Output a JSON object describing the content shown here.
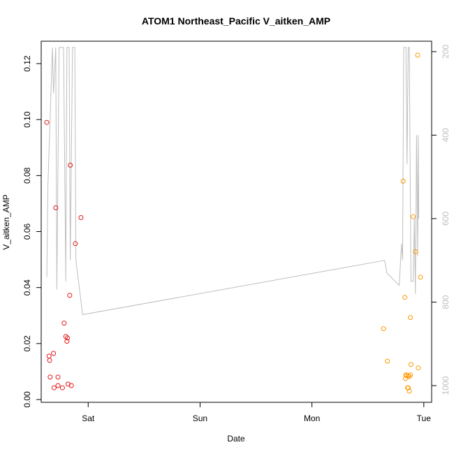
{
  "chart_data": {
    "type": "scatter",
    "title": "ATOM1 Northeast_Pacific V_aitken_AMP",
    "xlabel": "Date",
    "ylabel": "V_aitken_AMP",
    "xlim": [
      -0.42,
      3.07
    ],
    "ylim": [
      -0.001,
      0.128
    ],
    "x_ticks": [
      {
        "value": 0,
        "label": "Sat"
      },
      {
        "value": 1,
        "label": "Sun"
      },
      {
        "value": 2,
        "label": "Mon"
      },
      {
        "value": 3,
        "label": "Tue"
      }
    ],
    "y_ticks": [
      0.0,
      0.02,
      0.04,
      0.06,
      0.08,
      0.1,
      0.12
    ],
    "y_tick_labels": [
      "0.00",
      "0.02",
      "0.04",
      "0.06",
      "0.08",
      "0.10",
      "0.12"
    ],
    "y2lim": [
      1040,
      175
    ],
    "y2_ticks": [
      200,
      400,
      600,
      800,
      1000
    ],
    "y2_tick_labels": [
      "200",
      "400",
      "600",
      "800",
      "1000"
    ],
    "colors": {
      "series_red": "#e41a1c",
      "series_orange": "#ff9900",
      "line_gray": "#bebebe",
      "axis": "#000000"
    },
    "series": [
      {
        "color": "#e41a1c",
        "marker": "open-circle",
        "points": [
          {
            "x": -0.37,
            "y": 0.099
          },
          {
            "x": -0.35,
            "y": 0.0155
          },
          {
            "x": -0.345,
            "y": 0.014
          },
          {
            "x": -0.34,
            "y": 0.008
          },
          {
            "x": -0.31,
            "y": 0.0165
          },
          {
            "x": -0.305,
            "y": 0.0042
          },
          {
            "x": -0.29,
            "y": 0.0685
          },
          {
            "x": -0.27,
            "y": 0.008
          },
          {
            "x": -0.27,
            "y": 0.005
          },
          {
            "x": -0.23,
            "y": 0.0042
          },
          {
            "x": -0.215,
            "y": 0.0273
          },
          {
            "x": -0.2,
            "y": 0.0225
          },
          {
            "x": -0.19,
            "y": 0.0208
          },
          {
            "x": -0.185,
            "y": 0.022
          },
          {
            "x": -0.18,
            "y": 0.0055
          },
          {
            "x": -0.15,
            "y": 0.005
          },
          {
            "x": -0.16,
            "y": 0.0837
          },
          {
            "x": -0.165,
            "y": 0.0372
          },
          {
            "x": -0.115,
            "y": 0.0557
          },
          {
            "x": -0.065,
            "y": 0.065
          }
        ]
      },
      {
        "color": "#ff9900",
        "marker": "open-circle",
        "points": [
          {
            "x": 2.64,
            "y": 0.0253
          },
          {
            "x": 2.675,
            "y": 0.0137
          },
          {
            "x": 2.815,
            "y": 0.078
          },
          {
            "x": 2.83,
            "y": 0.0365
          },
          {
            "x": 2.835,
            "y": 0.0075
          },
          {
            "x": 2.84,
            "y": 0.0088
          },
          {
            "x": 2.845,
            "y": 0.0085
          },
          {
            "x": 2.855,
            "y": 0.0042
          },
          {
            "x": 2.86,
            "y": 0.0085
          },
          {
            "x": 2.86,
            "y": 0.0042
          },
          {
            "x": 2.87,
            "y": 0.003
          },
          {
            "x": 2.87,
            "y": 0.0082
          },
          {
            "x": 2.88,
            "y": 0.0088
          },
          {
            "x": 2.88,
            "y": 0.0293
          },
          {
            "x": 2.885,
            "y": 0.0125
          },
          {
            "x": 2.905,
            "y": 0.0653
          },
          {
            "x": 2.925,
            "y": 0.0528
          },
          {
            "x": 2.95,
            "y": 0.0113
          },
          {
            "x": 2.945,
            "y": 0.123
          },
          {
            "x": 2.97,
            "y": 0.0437
          }
        ]
      },
      {
        "color": "#bebebe",
        "type": "line",
        "axis": "right",
        "points": [
          {
            "x": -0.37,
            "y": 740
          },
          {
            "x": -0.36,
            "y": 520
          },
          {
            "x": -0.34,
            "y": 360
          },
          {
            "x": -0.32,
            "y": 190
          },
          {
            "x": -0.31,
            "y": 300
          },
          {
            "x": -0.29,
            "y": 190
          },
          {
            "x": -0.28,
            "y": 770
          },
          {
            "x": -0.26,
            "y": 190
          },
          {
            "x": -0.22,
            "y": 190
          },
          {
            "x": -0.2,
            "y": 750
          },
          {
            "x": -0.19,
            "y": 190
          },
          {
            "x": -0.17,
            "y": 190
          },
          {
            "x": -0.16,
            "y": 700
          },
          {
            "x": -0.14,
            "y": 190
          },
          {
            "x": -0.12,
            "y": 190
          },
          {
            "x": -0.11,
            "y": 700
          },
          {
            "x": -0.05,
            "y": 830
          },
          {
            "x": 2.65,
            "y": 700
          },
          {
            "x": 2.67,
            "y": 730
          },
          {
            "x": 2.78,
            "y": 760
          },
          {
            "x": 2.8,
            "y": 660
          },
          {
            "x": 2.81,
            "y": 700
          },
          {
            "x": 2.82,
            "y": 190
          },
          {
            "x": 2.84,
            "y": 190
          },
          {
            "x": 2.85,
            "y": 470
          },
          {
            "x": 2.86,
            "y": 190
          },
          {
            "x": 2.87,
            "y": 190
          },
          {
            "x": 2.885,
            "y": 750
          },
          {
            "x": 2.905,
            "y": 750
          },
          {
            "x": 2.915,
            "y": 600
          },
          {
            "x": 2.925,
            "y": 780
          },
          {
            "x": 2.935,
            "y": 400
          },
          {
            "x": 2.945,
            "y": 690
          },
          {
            "x": 2.95,
            "y": 400
          },
          {
            "x": 2.955,
            "y": 600
          }
        ]
      }
    ]
  }
}
